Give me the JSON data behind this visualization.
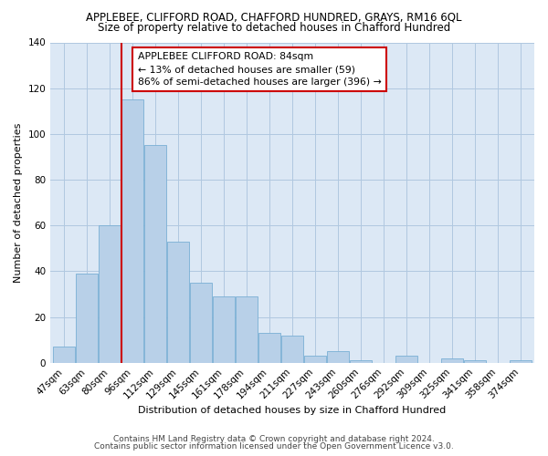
{
  "title": "APPLEBEE, CLIFFORD ROAD, CHAFFORD HUNDRED, GRAYS, RM16 6QL",
  "subtitle": "Size of property relative to detached houses in Chafford Hundred",
  "xlabel": "Distribution of detached houses by size in Chafford Hundred",
  "ylabel": "Number of detached properties",
  "categories": [
    "47sqm",
    "63sqm",
    "80sqm",
    "96sqm",
    "112sqm",
    "129sqm",
    "145sqm",
    "161sqm",
    "178sqm",
    "194sqm",
    "211sqm",
    "227sqm",
    "243sqm",
    "260sqm",
    "276sqm",
    "292sqm",
    "309sqm",
    "325sqm",
    "341sqm",
    "358sqm",
    "374sqm"
  ],
  "values": [
    7,
    39,
    60,
    115,
    95,
    53,
    35,
    29,
    29,
    13,
    12,
    3,
    5,
    1,
    0,
    3,
    0,
    2,
    1,
    0,
    1
  ],
  "bar_color": "#b8d0e8",
  "bar_edge_color": "#7aafd4",
  "vline_x": 2.5,
  "vline_color": "#cc0000",
  "annotation_text_line1": "APPLEBEE CLIFFORD ROAD: 84sqm",
  "annotation_text_line2": "← 13% of detached houses are smaller (59)",
  "annotation_text_line3": "86% of semi-detached houses are larger (396) →",
  "annotation_box_color": "#ffffff",
  "annotation_box_edge_color": "#cc0000",
  "ylim": [
    0,
    140
  ],
  "yticks": [
    0,
    20,
    40,
    60,
    80,
    100,
    120,
    140
  ],
  "plot_bg_color": "#dce8f5",
  "fig_bg_color": "#ffffff",
  "grid_color": "#b0c8e0",
  "footer1": "Contains HM Land Registry data © Crown copyright and database right 2024.",
  "footer2": "Contains public sector information licensed under the Open Government Licence v3.0.",
  "title_fontsize": 8.5,
  "subtitle_fontsize": 8.5,
  "axis_label_fontsize": 8,
  "tick_fontsize": 7.5,
  "annotation_fontsize": 7.8,
  "footer_fontsize": 6.5
}
